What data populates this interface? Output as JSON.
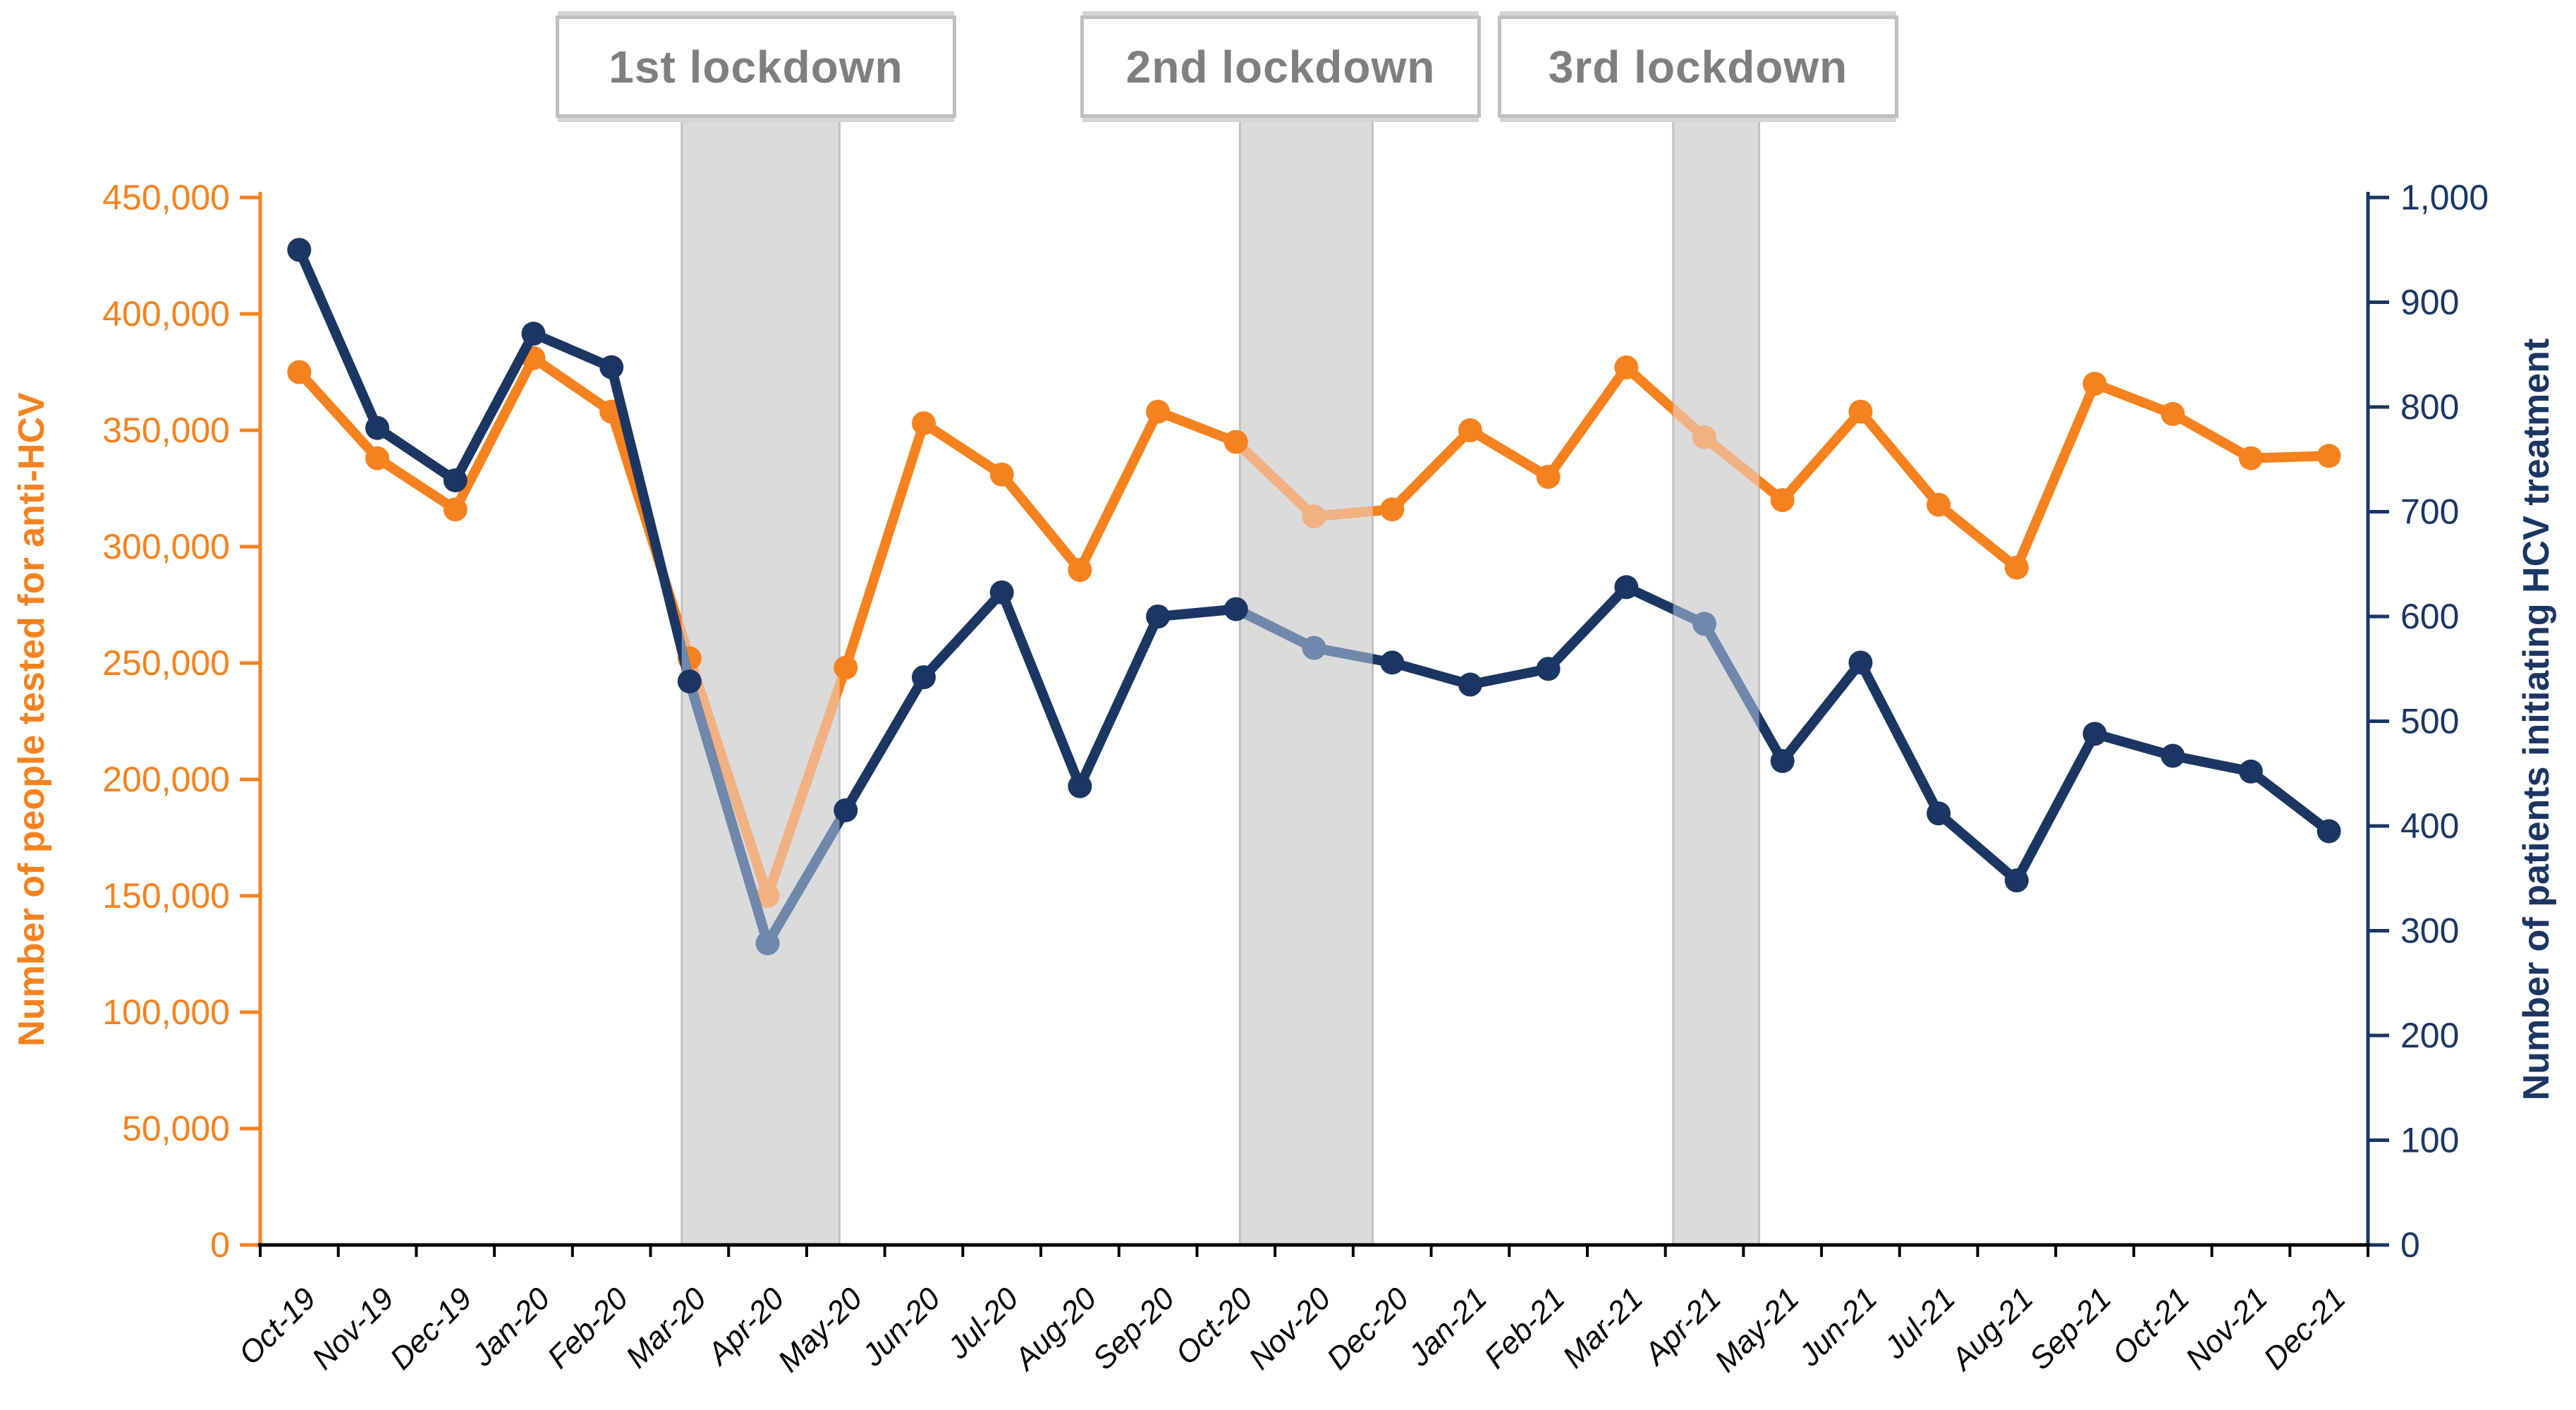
{
  "chart_data": {
    "type": "line",
    "title": "",
    "grid": false,
    "legend_position": "none",
    "categories": [
      "Oct-19",
      "Nov-19",
      "Dec-19",
      "Jan-20",
      "Feb-20",
      "Mar-20",
      "Apr-20",
      "May-20",
      "Jun-20",
      "Jul-20",
      "Aug-20",
      "Sep-20",
      "Oct-20",
      "Nov-20",
      "Dec-20",
      "Jan-21",
      "Feb-21",
      "Mar-21",
      "Apr-21",
      "May-21",
      "Jun-21",
      "Jul-21",
      "Aug-21",
      "Sep-21",
      "Oct-21",
      "Nov-21",
      "Dec-21"
    ],
    "series": [
      {
        "name": "Number of people tested for anti-HCV",
        "axis": "left",
        "color": "#F5821F",
        "faded_color": "#F2B183",
        "values": [
          375000,
          338000,
          316000,
          381000,
          358000,
          252000,
          150000,
          248000,
          353000,
          331000,
          290000,
          358000,
          345000,
          313000,
          316000,
          350000,
          330000,
          377000,
          347000,
          320000,
          358000,
          318000,
          291000,
          370000,
          357000,
          338000,
          339000
        ]
      },
      {
        "name": "Number of patients initiating HCV treatment",
        "axis": "right",
        "color": "#1C3663",
        "faded_color": "#7088AC",
        "values": [
          950,
          780,
          730,
          870,
          838,
          538,
          288,
          415,
          542,
          623,
          438,
          600,
          607,
          570,
          556,
          535,
          550,
          628,
          593,
          462,
          556,
          412,
          348,
          488,
          467,
          452,
          395
        ]
      }
    ],
    "left_axis": {
      "title": "Number of people tested for anti-HCV",
      "min": 0,
      "max": 450000,
      "step": 50000,
      "color": "#F5821F",
      "tick_labels": [
        "0",
        "50,000",
        "100,000",
        "150,000",
        "200,000",
        "250,000",
        "300,000",
        "350,000",
        "400,000",
        "450,000"
      ]
    },
    "right_axis": {
      "title": "Number of patients initiating HCV treatment",
      "min": 0,
      "max": 1000,
      "step": 100,
      "color": "#1C3663",
      "tick_labels": [
        "0",
        "100",
        "200",
        "300",
        "400",
        "500",
        "600",
        "700",
        "800",
        "900",
        "1,000"
      ]
    },
    "x_axis": {
      "tick_label_color": "#000000",
      "line_color": "#000000"
    },
    "lockdowns": [
      {
        "label": "1st lockdown",
        "from_index": 4.9,
        "to_index": 6.92,
        "faded_month": "Apr-20"
      },
      {
        "label": "2nd lockdown",
        "from_index": 12.05,
        "to_index": 13.75,
        "faded_month": "Nov-20"
      },
      {
        "label": "3rd lockdown",
        "from_index": 17.6,
        "to_index": 18.7,
        "faded_month": "Apr-21"
      }
    ],
    "band_color": "#DBDBDB",
    "band_border_color": "#C2C2C2"
  }
}
